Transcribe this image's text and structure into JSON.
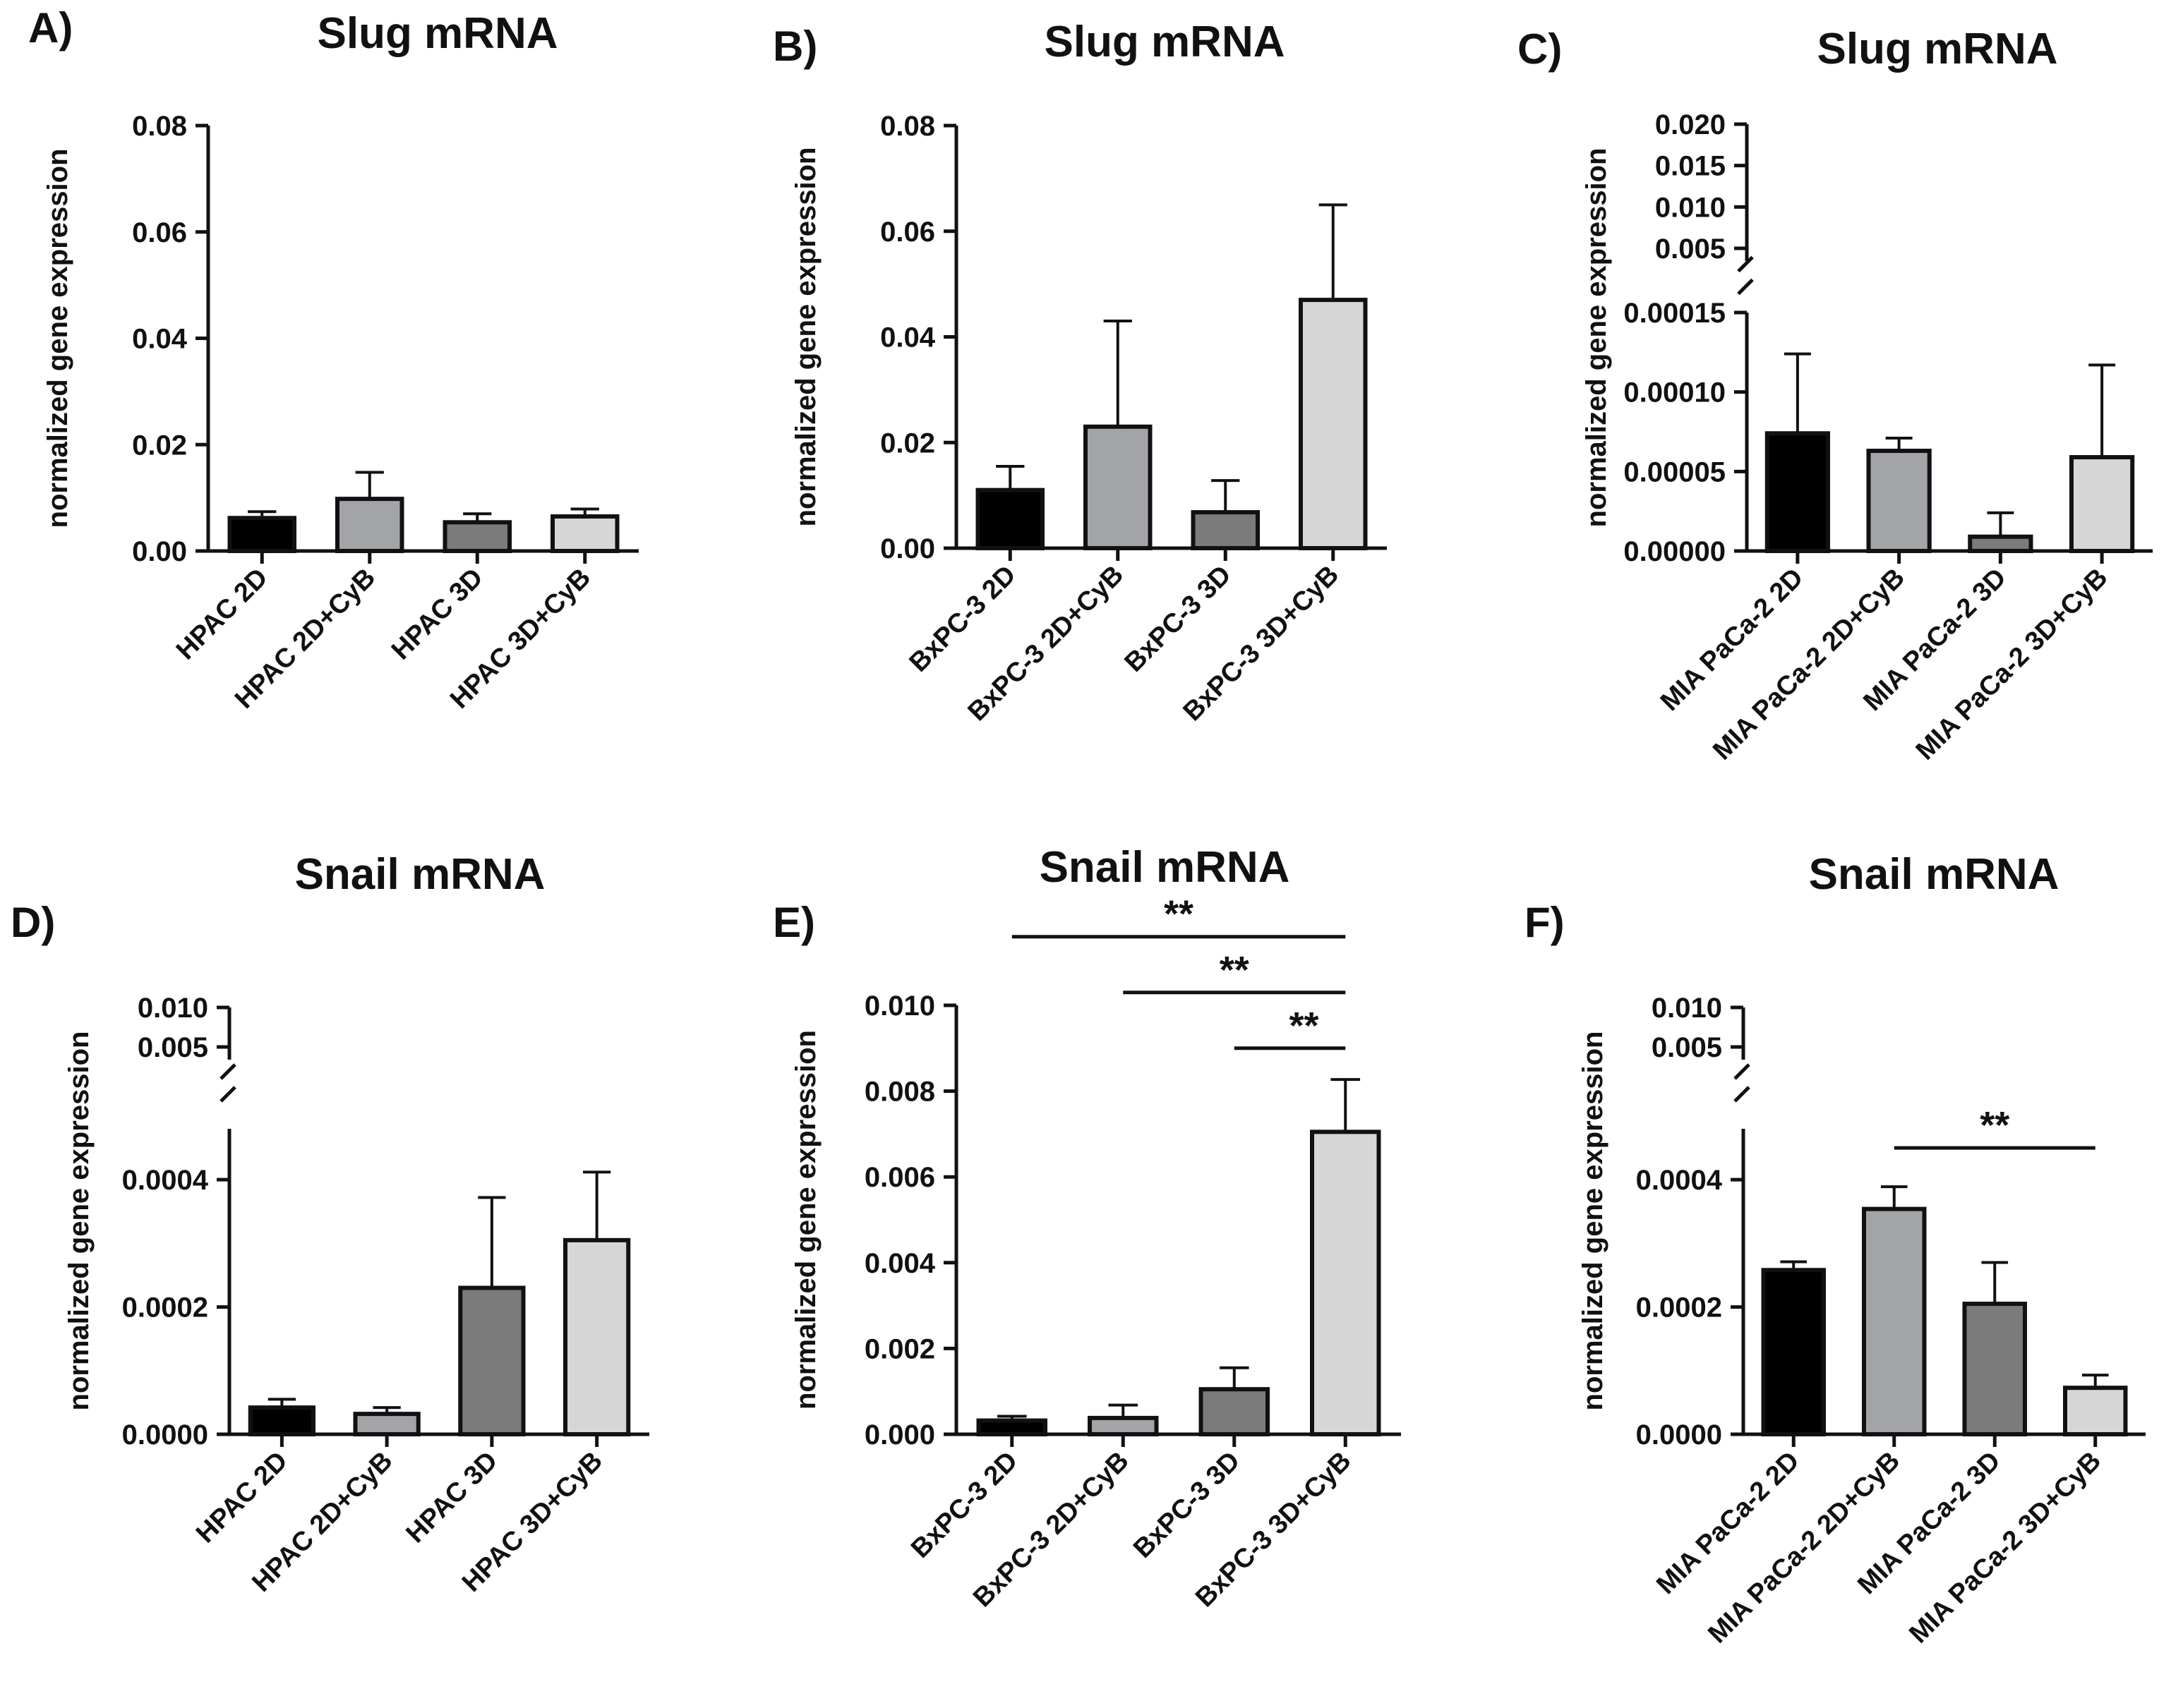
{
  "figure": {
    "description_free": true
  },
  "chart_data": [
    {
      "panel": "A)",
      "type": "bar",
      "title": "Slug mRNA",
      "ylabel": "normalized gene expression",
      "categories": [
        "HPAC 2D",
        "HPAC 2D+CyB",
        "HPAC 3D",
        "HPAC 3D+CyB"
      ],
      "values": [
        0.0062,
        0.0098,
        0.0054,
        0.0065
      ],
      "errors": [
        0.0012,
        0.005,
        0.0016,
        0.0014
      ],
      "colors": [
        "#000000",
        "#a3a4a8",
        "#7b7b7b",
        "#d6d6d6"
      ],
      "axis": {
        "type": "linear",
        "ylim": [
          0,
          0.08
        ],
        "ticks": [
          0.0,
          0.02,
          0.04,
          0.06,
          0.08
        ],
        "tick_labels": [
          "0.00",
          "0.02",
          "0.04",
          "0.06",
          "0.08"
        ]
      },
      "significance": []
    },
    {
      "panel": "B)",
      "type": "bar",
      "title": "Slug mRNA",
      "ylabel": "normalized gene expression",
      "categories": [
        "BxPC-3 2D",
        "BxPC-3 2D+CyB",
        "BxPC-3 3D",
        "BxPC-3 3D+CyB"
      ],
      "values": [
        0.011,
        0.023,
        0.0068,
        0.047
      ],
      "errors": [
        0.0045,
        0.02,
        0.006,
        0.018
      ],
      "colors": [
        "#000000",
        "#a3a4a8",
        "#7b7b7b",
        "#d6d6d6"
      ],
      "axis": {
        "type": "linear",
        "ylim": [
          0,
          0.08
        ],
        "ticks": [
          0.0,
          0.02,
          0.04,
          0.06,
          0.08
        ],
        "tick_labels": [
          "0.00",
          "0.02",
          "0.04",
          "0.06",
          "0.08"
        ]
      },
      "significance": []
    },
    {
      "panel": "C)",
      "type": "bar",
      "title": "Slug mRNA",
      "ylabel": "normalized gene expression",
      "categories": [
        "MIA PaCa-2 2D",
        "MIA PaCa-2 2D+CyB",
        "MIA PaCa-2 3D",
        "MIA PaCa-2 3D+CyB"
      ],
      "values": [
        7.4e-05,
        6.3e-05,
        9e-06,
        5.9e-05
      ],
      "errors": [
        5e-05,
        8e-06,
        1.5e-05,
        5.8e-05
      ],
      "colors": [
        "#000000",
        "#a3a4a8",
        "#7b7b7b",
        "#d6d6d6"
      ],
      "axis": {
        "type": "broken",
        "ylim": [
          0,
          0.00015
        ],
        "ticks": [
          0.0,
          5e-05,
          0.0001,
          0.00015
        ],
        "tick_labels": [
          "0.00000",
          "0.00005",
          "0.00010",
          "0.00015"
        ],
        "upper_range": [
          0.005,
          0.02
        ],
        "upper_ticks": [
          0.005,
          0.01,
          0.015,
          0.02
        ],
        "upper_tick_labels": [
          "0.005",
          "0.010",
          "0.015",
          "0.020"
        ]
      },
      "significance": []
    },
    {
      "panel": "D)",
      "type": "bar",
      "title": "Snail mRNA",
      "ylabel": "normalized gene expression",
      "categories": [
        "HPAC 2D",
        "HPAC 2D+CyB",
        "HPAC 3D",
        "HPAC 3D+CyB"
      ],
      "values": [
        4.2e-05,
        3.2e-05,
        0.00023,
        0.000305
      ],
      "errors": [
        1.3e-05,
        1e-05,
        0.000142,
        0.000107
      ],
      "colors": [
        "#000000",
        "#a3a4a8",
        "#7b7b7b",
        "#d6d6d6"
      ],
      "axis": {
        "type": "broken",
        "ylim": [
          0,
          0.00048
        ],
        "ticks": [
          0.0,
          0.0002,
          0.0004
        ],
        "tick_labels": [
          "0.0000",
          "0.0002",
          "0.0004"
        ],
        "upper_range": [
          0.005,
          0.01
        ],
        "upper_ticks": [
          0.005,
          0.01
        ],
        "upper_tick_labels": [
          "0.005",
          "0.010"
        ]
      },
      "significance": []
    },
    {
      "panel": "E)",
      "type": "bar",
      "title": "Snail mRNA",
      "ylabel": "normalized gene expression",
      "categories": [
        "BxPC-3 2D",
        "BxPC-3 2D+CyB",
        "BxPC-3 3D",
        "BxPC-3 3D+CyB"
      ],
      "values": [
        0.00032,
        0.00038,
        0.00105,
        0.00705
      ],
      "errors": [
        0.0001,
        0.0003,
        0.0005,
        0.00122
      ],
      "colors": [
        "#000000",
        "#a3a4a8",
        "#7b7b7b",
        "#d6d6d6"
      ],
      "axis": {
        "type": "linear",
        "ylim": [
          0,
          0.01
        ],
        "ticks": [
          0.0,
          0.002,
          0.004,
          0.006,
          0.008,
          0.01
        ],
        "tick_labels": [
          "0.000",
          "0.002",
          "0.004",
          "0.006",
          "0.008",
          "0.010"
        ]
      },
      "significance": [
        {
          "from": 0,
          "to": 3,
          "label": "**",
          "level": 0.0116
        },
        {
          "from": 1,
          "to": 3,
          "label": "**",
          "level": 0.0103
        },
        {
          "from": 2,
          "to": 3,
          "label": "**",
          "level": 0.009
        }
      ]
    },
    {
      "panel": "F)",
      "type": "bar",
      "title": "Snail mRNA",
      "ylabel": "normalized gene expression",
      "categories": [
        "MIA PaCa-2 2D",
        "MIA PaCa-2 2D+CyB",
        "MIA PaCa-2 3D",
        "MIA PaCa-2 3D+CyB"
      ],
      "values": [
        0.000258,
        0.000354,
        0.000205,
        7.3e-05
      ],
      "errors": [
        1.3e-05,
        3.5e-05,
        6.5e-05,
        2e-05
      ],
      "colors": [
        "#000000",
        "#a3a4a8",
        "#7b7b7b",
        "#d6d6d6"
      ],
      "axis": {
        "type": "broken",
        "ylim": [
          0,
          0.00048
        ],
        "ticks": [
          0.0,
          0.0002,
          0.0004
        ],
        "tick_labels": [
          "0.0000",
          "0.0002",
          "0.0004"
        ],
        "upper_range": [
          0.005,
          0.01
        ],
        "upper_ticks": [
          0.005,
          0.01
        ],
        "upper_tick_labels": [
          "0.005",
          "0.010"
        ]
      },
      "significance": [
        {
          "from": 1,
          "to": 3,
          "label": "**",
          "level": 0.00045
        }
      ]
    }
  ]
}
